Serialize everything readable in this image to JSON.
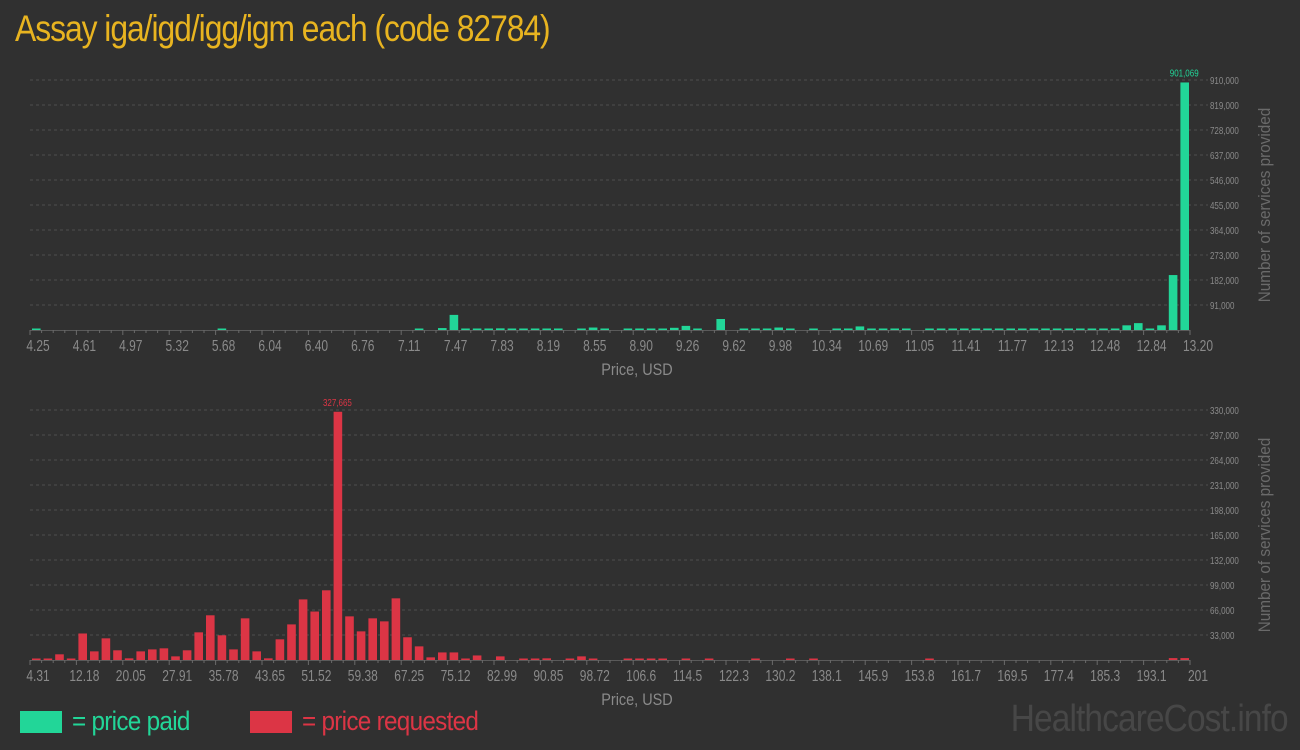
{
  "title": "Assay iga/igd/igg/igm each (code 82784)",
  "colors": {
    "paid": "#22d698",
    "requested": "#dc3545",
    "title": "#e8b420",
    "text": "#8a8a8a",
    "background": "#303030"
  },
  "legend": {
    "paid": "= price paid",
    "requested": "= price requested"
  },
  "watermark": "HealthcareCost.info",
  "chart_data": [
    {
      "type": "bar",
      "series_color": "#22d698",
      "xlabel": "Price, USD",
      "ylabel": "Number of services provided",
      "xlim": [
        4.25,
        13.2
      ],
      "ylim": [
        0,
        910000
      ],
      "grid": true,
      "x_tick_labels": [
        "4.25",
        "4.61",
        "4.97",
        "5.32",
        "5.68",
        "6.04",
        "6.40",
        "6.76",
        "7.11",
        "7.47",
        "7.83",
        "8.19",
        "8.55",
        "8.90",
        "9.26",
        "9.62",
        "9.98",
        "10.34",
        "10.69",
        "11.05",
        "11.41",
        "11.77",
        "12.13",
        "12.48",
        "12.84",
        "13.20"
      ],
      "y_tick_labels": [
        "91,000",
        "182,000",
        "273,000",
        "364,000",
        "455,000",
        "546,000",
        "637,000",
        "728,000",
        "819,000",
        "910,000"
      ],
      "y_ticks": [
        91000,
        182000,
        273000,
        364000,
        455000,
        546000,
        637000,
        728000,
        819000,
        910000
      ],
      "max_label": "901,069",
      "values": [
        3000,
        0,
        0,
        0,
        0,
        0,
        0,
        0,
        0,
        0,
        0,
        0,
        0,
        0,
        0,
        0,
        2000,
        0,
        0,
        0,
        0,
        0,
        0,
        0,
        0,
        0,
        0,
        0,
        0,
        0,
        0,
        0,
        0,
        3000,
        0,
        7000,
        55000,
        3000,
        2000,
        3000,
        6000,
        3000,
        5000,
        5000,
        3000,
        2000,
        0,
        3000,
        9000,
        3000,
        0,
        2000,
        3000,
        2000,
        3000,
        8000,
        15000,
        3000,
        0,
        40000,
        0,
        2000,
        3000,
        2000,
        9000,
        3000,
        0,
        2000,
        0,
        3000,
        2000,
        13000,
        3000,
        3000,
        3000,
        3000,
        0,
        2000,
        2000,
        3000,
        2000,
        2000,
        2000,
        3000,
        2000,
        3000,
        5000,
        3000,
        2000,
        3000,
        2000,
        3000,
        2000,
        2000,
        17000,
        25000,
        5000,
        17000,
        200000,
        901069
      ]
    },
    {
      "type": "bar",
      "series_color": "#dc3545",
      "xlabel": "Price, USD",
      "ylabel": "Number of services provided",
      "xlim": [
        4.31,
        201
      ],
      "ylim": [
        0,
        330000
      ],
      "grid": true,
      "x_tick_labels": [
        "4.31",
        "12.18",
        "20.05",
        "27.91",
        "35.78",
        "43.65",
        "51.52",
        "59.38",
        "67.25",
        "75.12",
        "82.99",
        "90.85",
        "98.72",
        "106.6",
        "114.5",
        "122.3",
        "130.2",
        "138.1",
        "145.9",
        "153.8",
        "161.7",
        "169.5",
        "177.4",
        "185.3",
        "193.1",
        "201"
      ],
      "y_tick_labels": [
        "33,000",
        "66,000",
        "99,000",
        "132,000",
        "165,000",
        "198,000",
        "231,000",
        "264,000",
        "297,000",
        "330,000"
      ],
      "y_ticks": [
        33000,
        66000,
        99000,
        132000,
        165000,
        198000,
        231000,
        264000,
        297000,
        330000
      ],
      "max_label": "327,665",
      "values": [
        1000,
        1000,
        7500,
        1000,
        35000,
        11400,
        28600,
        12800,
        2200,
        11400,
        14000,
        15400,
        4800,
        12800,
        36500,
        59000,
        32600,
        14000,
        55000,
        11400,
        2200,
        27300,
        47000,
        80000,
        64000,
        92000,
        327665,
        57600,
        37800,
        55000,
        51000,
        81400,
        30000,
        18000,
        3500,
        10000,
        10000,
        1000,
        6000,
        0,
        4800,
        0,
        1000,
        1000,
        2200,
        0,
        500,
        4800,
        1000,
        0,
        0,
        1000,
        1000,
        1000,
        1000,
        0,
        1000,
        0,
        1000,
        0,
        0,
        0,
        1000,
        0,
        0,
        1000,
        0,
        1000,
        0,
        0,
        0,
        0,
        0,
        0,
        0,
        0,
        0,
        1000,
        0,
        0,
        0,
        0,
        0,
        0,
        0,
        0,
        0,
        0,
        0,
        0,
        0,
        0,
        0,
        0,
        0,
        0,
        0,
        0,
        2500,
        2500
      ]
    }
  ]
}
